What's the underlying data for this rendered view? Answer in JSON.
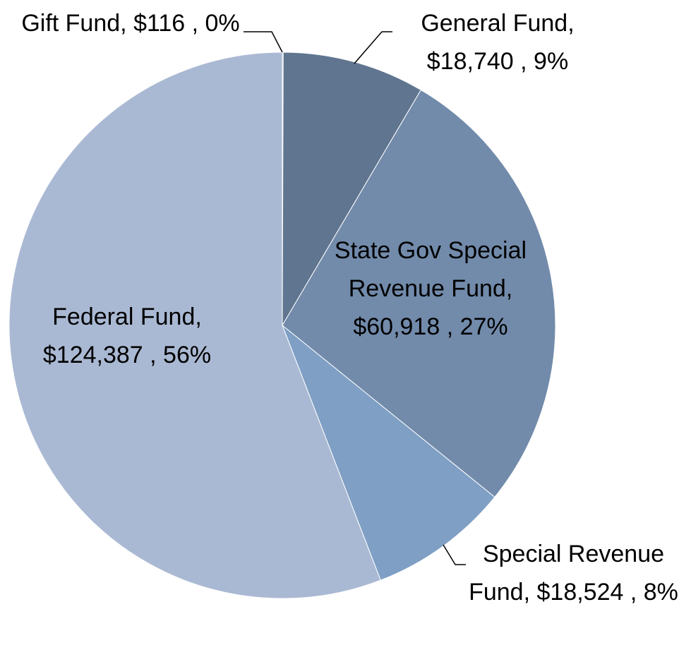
{
  "chart_data": {
    "type": "pie",
    "categories": [
      "Gift Fund,",
      "General Fund,",
      "State Gov Special Revenue Fund,",
      "Special Revenue Fund,",
      "Federal Fund,"
    ],
    "values": [
      116,
      18740,
      60918,
      18524,
      124387
    ],
    "value_labels": [
      "$116 , 0%",
      "$18,740 , 9%",
      "$60,918 , 27%",
      "$18,524 , 8%",
      "$124,387 , 56%"
    ],
    "colors": [
      "#4f6180",
      "#60758f",
      "#728bab",
      "#7f9fc4",
      "#aab9d3"
    ]
  }
}
